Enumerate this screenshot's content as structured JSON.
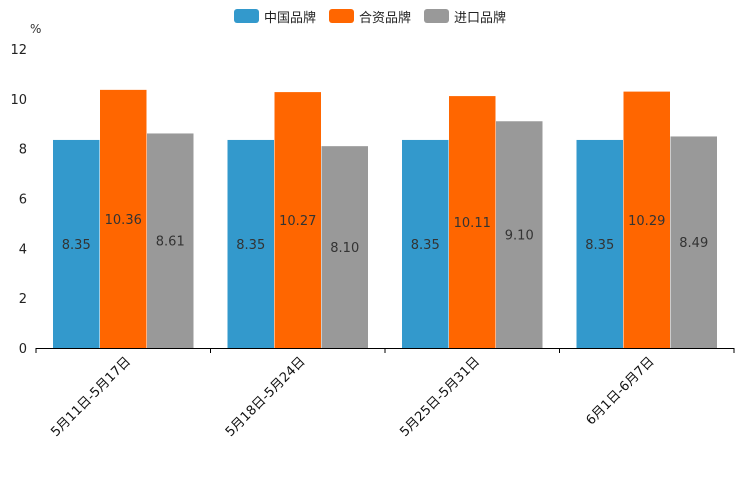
{
  "legend": {
    "items": [
      {
        "label": "中国品牌",
        "color": "#3399cc"
      },
      {
        "label": "合资品牌",
        "color": "#ff6600"
      },
      {
        "label": "进口品牌",
        "color": "#999999"
      }
    ]
  },
  "chart_data": {
    "type": "bar",
    "title": "",
    "unit": "%",
    "xlabel": "",
    "ylabel": "%",
    "ylim": [
      0,
      12
    ],
    "yticks": [
      0,
      2,
      4,
      6,
      8,
      10,
      12
    ],
    "categories": [
      "5月11日-5月17日",
      "5月18日-5月24日",
      "5月25日-5月31日",
      "6月1日-6月7日"
    ],
    "series": [
      {
        "name": "中国品牌",
        "color": "#3399cc",
        "values": [
          8.35,
          8.35,
          8.35,
          8.35
        ],
        "labels": [
          "8.35",
          "8.35",
          "8.35",
          "8.35"
        ]
      },
      {
        "name": "合资品牌",
        "color": "#ff6600",
        "values": [
          10.36,
          10.27,
          10.11,
          10.29
        ],
        "labels": [
          "10.36",
          "10.27",
          "10.11",
          "10.29"
        ]
      },
      {
        "name": "进口品牌",
        "color": "#999999",
        "values": [
          8.61,
          8.1,
          9.1,
          8.49
        ],
        "labels": [
          "8.61",
          "8.10",
          "9.10",
          "8.49"
        ]
      }
    ]
  }
}
